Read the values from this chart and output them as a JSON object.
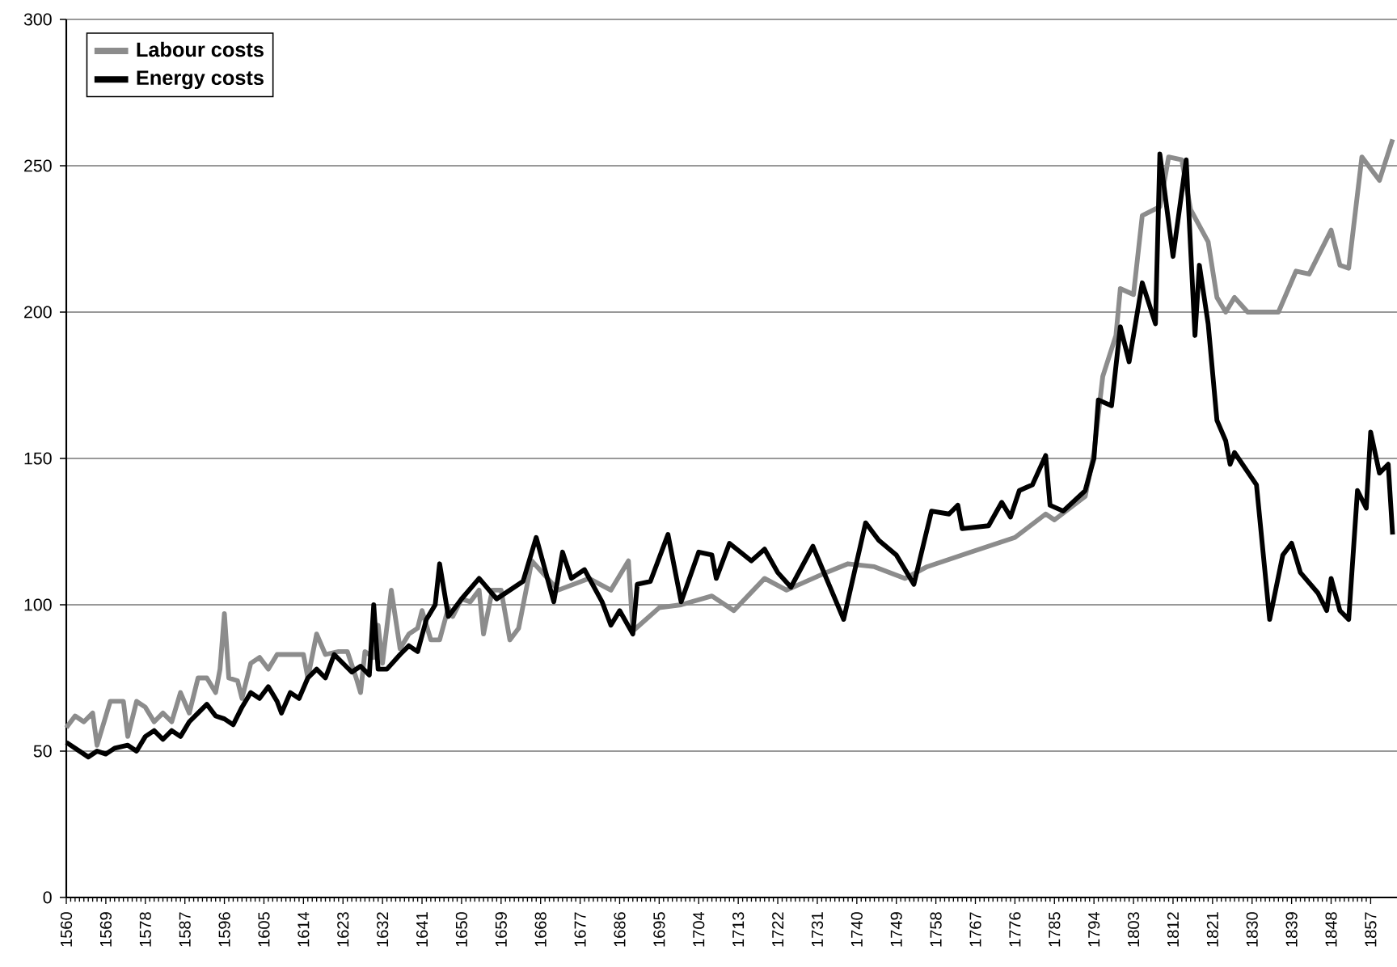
{
  "chart_data": {
    "type": "line",
    "xlim": [
      1560,
      1863
    ],
    "ylim": [
      0,
      300
    ],
    "xticks": [
      1560,
      1569,
      1578,
      1587,
      1596,
      1605,
      1614,
      1623,
      1632,
      1641,
      1650,
      1659,
      1668,
      1677,
      1686,
      1695,
      1704,
      1713,
      1722,
      1731,
      1740,
      1749,
      1758,
      1767,
      1776,
      1785,
      1794,
      1803,
      1812,
      1821,
      1830,
      1839,
      1848,
      1857
    ],
    "yticks": [
      0,
      50,
      100,
      150,
      200,
      250,
      300
    ],
    "grid": "y",
    "legend": "top left",
    "marker": "none",
    "line_style": "solid",
    "series": [
      {
        "name": "Labour costs",
        "color": "#8c8c8c",
        "x": [
          1560,
          1562,
          1564,
          1566,
          1567,
          1569,
          1570,
          1573,
          1574,
          1576,
          1578,
          1580,
          1582,
          1584,
          1586,
          1588,
          1590,
          1592,
          1594,
          1595,
          1596,
          1597,
          1599,
          1600,
          1602,
          1604,
          1606,
          1608,
          1612,
          1614,
          1615,
          1617,
          1619,
          1622,
          1624,
          1626,
          1627,
          1628,
          1630,
          1631,
          1632,
          1634,
          1636,
          1638,
          1640,
          1641,
          1643,
          1645,
          1647,
          1648,
          1650,
          1652,
          1654,
          1655,
          1657,
          1659,
          1661,
          1663,
          1666,
          1672,
          1679,
          1684,
          1688,
          1689,
          1695,
          1700,
          1707,
          1712,
          1719,
          1724,
          1733,
          1738,
          1744,
          1751,
          1756,
          1766,
          1776,
          1783,
          1785,
          1792,
          1794,
          1796,
          1799,
          1800,
          1803,
          1805,
          1809,
          1811,
          1814,
          1816,
          1820,
          1822,
          1824,
          1826,
          1829,
          1831,
          1836,
          1840,
          1843,
          1848,
          1850,
          1852,
          1855,
          1859,
          1862
        ],
        "values": [
          58,
          62,
          60,
          63,
          52,
          62,
          67,
          67,
          55,
          67,
          65,
          60,
          63,
          60,
          70,
          63,
          75,
          75,
          70,
          78,
          97,
          75,
          74,
          68,
          80,
          82,
          78,
          83,
          83,
          83,
          75,
          90,
          83,
          84,
          84,
          75,
          70,
          84,
          82,
          93,
          80,
          105,
          85,
          90,
          92,
          98,
          88,
          88,
          99,
          96,
          102,
          101,
          105,
          90,
          105,
          105,
          88,
          92,
          115,
          105,
          109,
          105,
          115,
          91,
          99,
          100,
          103,
          98,
          109,
          105,
          111,
          114,
          113,
          109,
          113,
          118,
          123,
          131,
          129,
          137,
          152,
          178,
          192,
          208,
          206,
          233,
          236,
          253,
          252,
          235,
          224,
          205,
          200,
          205,
          200,
          200,
          200,
          214,
          213,
          228,
          216,
          215,
          253,
          245,
          259
        ]
      },
      {
        "name": "Energy costs",
        "color": "#000000",
        "x": [
          1560,
          1563,
          1565,
          1567,
          1569,
          1571,
          1574,
          1576,
          1578,
          1580,
          1582,
          1584,
          1586,
          1588,
          1590,
          1592,
          1594,
          1596,
          1598,
          1600,
          1602,
          1604,
          1606,
          1608,
          1609,
          1611,
          1613,
          1615,
          1617,
          1619,
          1621,
          1623,
          1625,
          1627,
          1629,
          1630,
          1631,
          1633,
          1636,
          1638,
          1640,
          1642,
          1644,
          1645,
          1647,
          1650,
          1654,
          1658,
          1664,
          1667,
          1671,
          1673,
          1675,
          1678,
          1682,
          1684,
          1686,
          1689,
          1690,
          1693,
          1697,
          1700,
          1704,
          1707,
          1708,
          1711,
          1716,
          1719,
          1722,
          1725,
          1730,
          1737,
          1742,
          1745,
          1749,
          1753,
          1757,
          1761,
          1763,
          1764,
          1770,
          1773,
          1775,
          1777,
          1780,
          1783,
          1784,
          1787,
          1792,
          1794,
          1795,
          1798,
          1800,
          1802,
          1805,
          1808,
          1809,
          1812,
          1815,
          1817,
          1818,
          1820,
          1822,
          1824,
          1825,
          1826,
          1831,
          1834,
          1837,
          1839,
          1841,
          1845,
          1847,
          1848,
          1850,
          1852,
          1854,
          1856,
          1857,
          1859,
          1861,
          1862
        ],
        "values": [
          53,
          50,
          48,
          50,
          49,
          51,
          52,
          50,
          55,
          57,
          54,
          57,
          55,
          60,
          63,
          66,
          62,
          61,
          59,
          65,
          70,
          68,
          72,
          67,
          63,
          70,
          68,
          75,
          78,
          75,
          83,
          80,
          77,
          79,
          76,
          100,
          78,
          78,
          83,
          86,
          84,
          95,
          100,
          114,
          96,
          102,
          109,
          102,
          108,
          123,
          101,
          118,
          109,
          112,
          101,
          93,
          98,
          90,
          107,
          108,
          124,
          101,
          118,
          117,
          109,
          121,
          115,
          119,
          111,
          106,
          120,
          95,
          128,
          122,
          117,
          107,
          132,
          131,
          134,
          126,
          127,
          135,
          130,
          139,
          141,
          151,
          134,
          132,
          139,
          150,
          170,
          168,
          195,
          183,
          210,
          196,
          254,
          219,
          252,
          192,
          216,
          196,
          163,
          156,
          148,
          152,
          141,
          95,
          117,
          121,
          111,
          104,
          98,
          109,
          98,
          95,
          139,
          133,
          159,
          145,
          148,
          124
        ]
      }
    ]
  }
}
